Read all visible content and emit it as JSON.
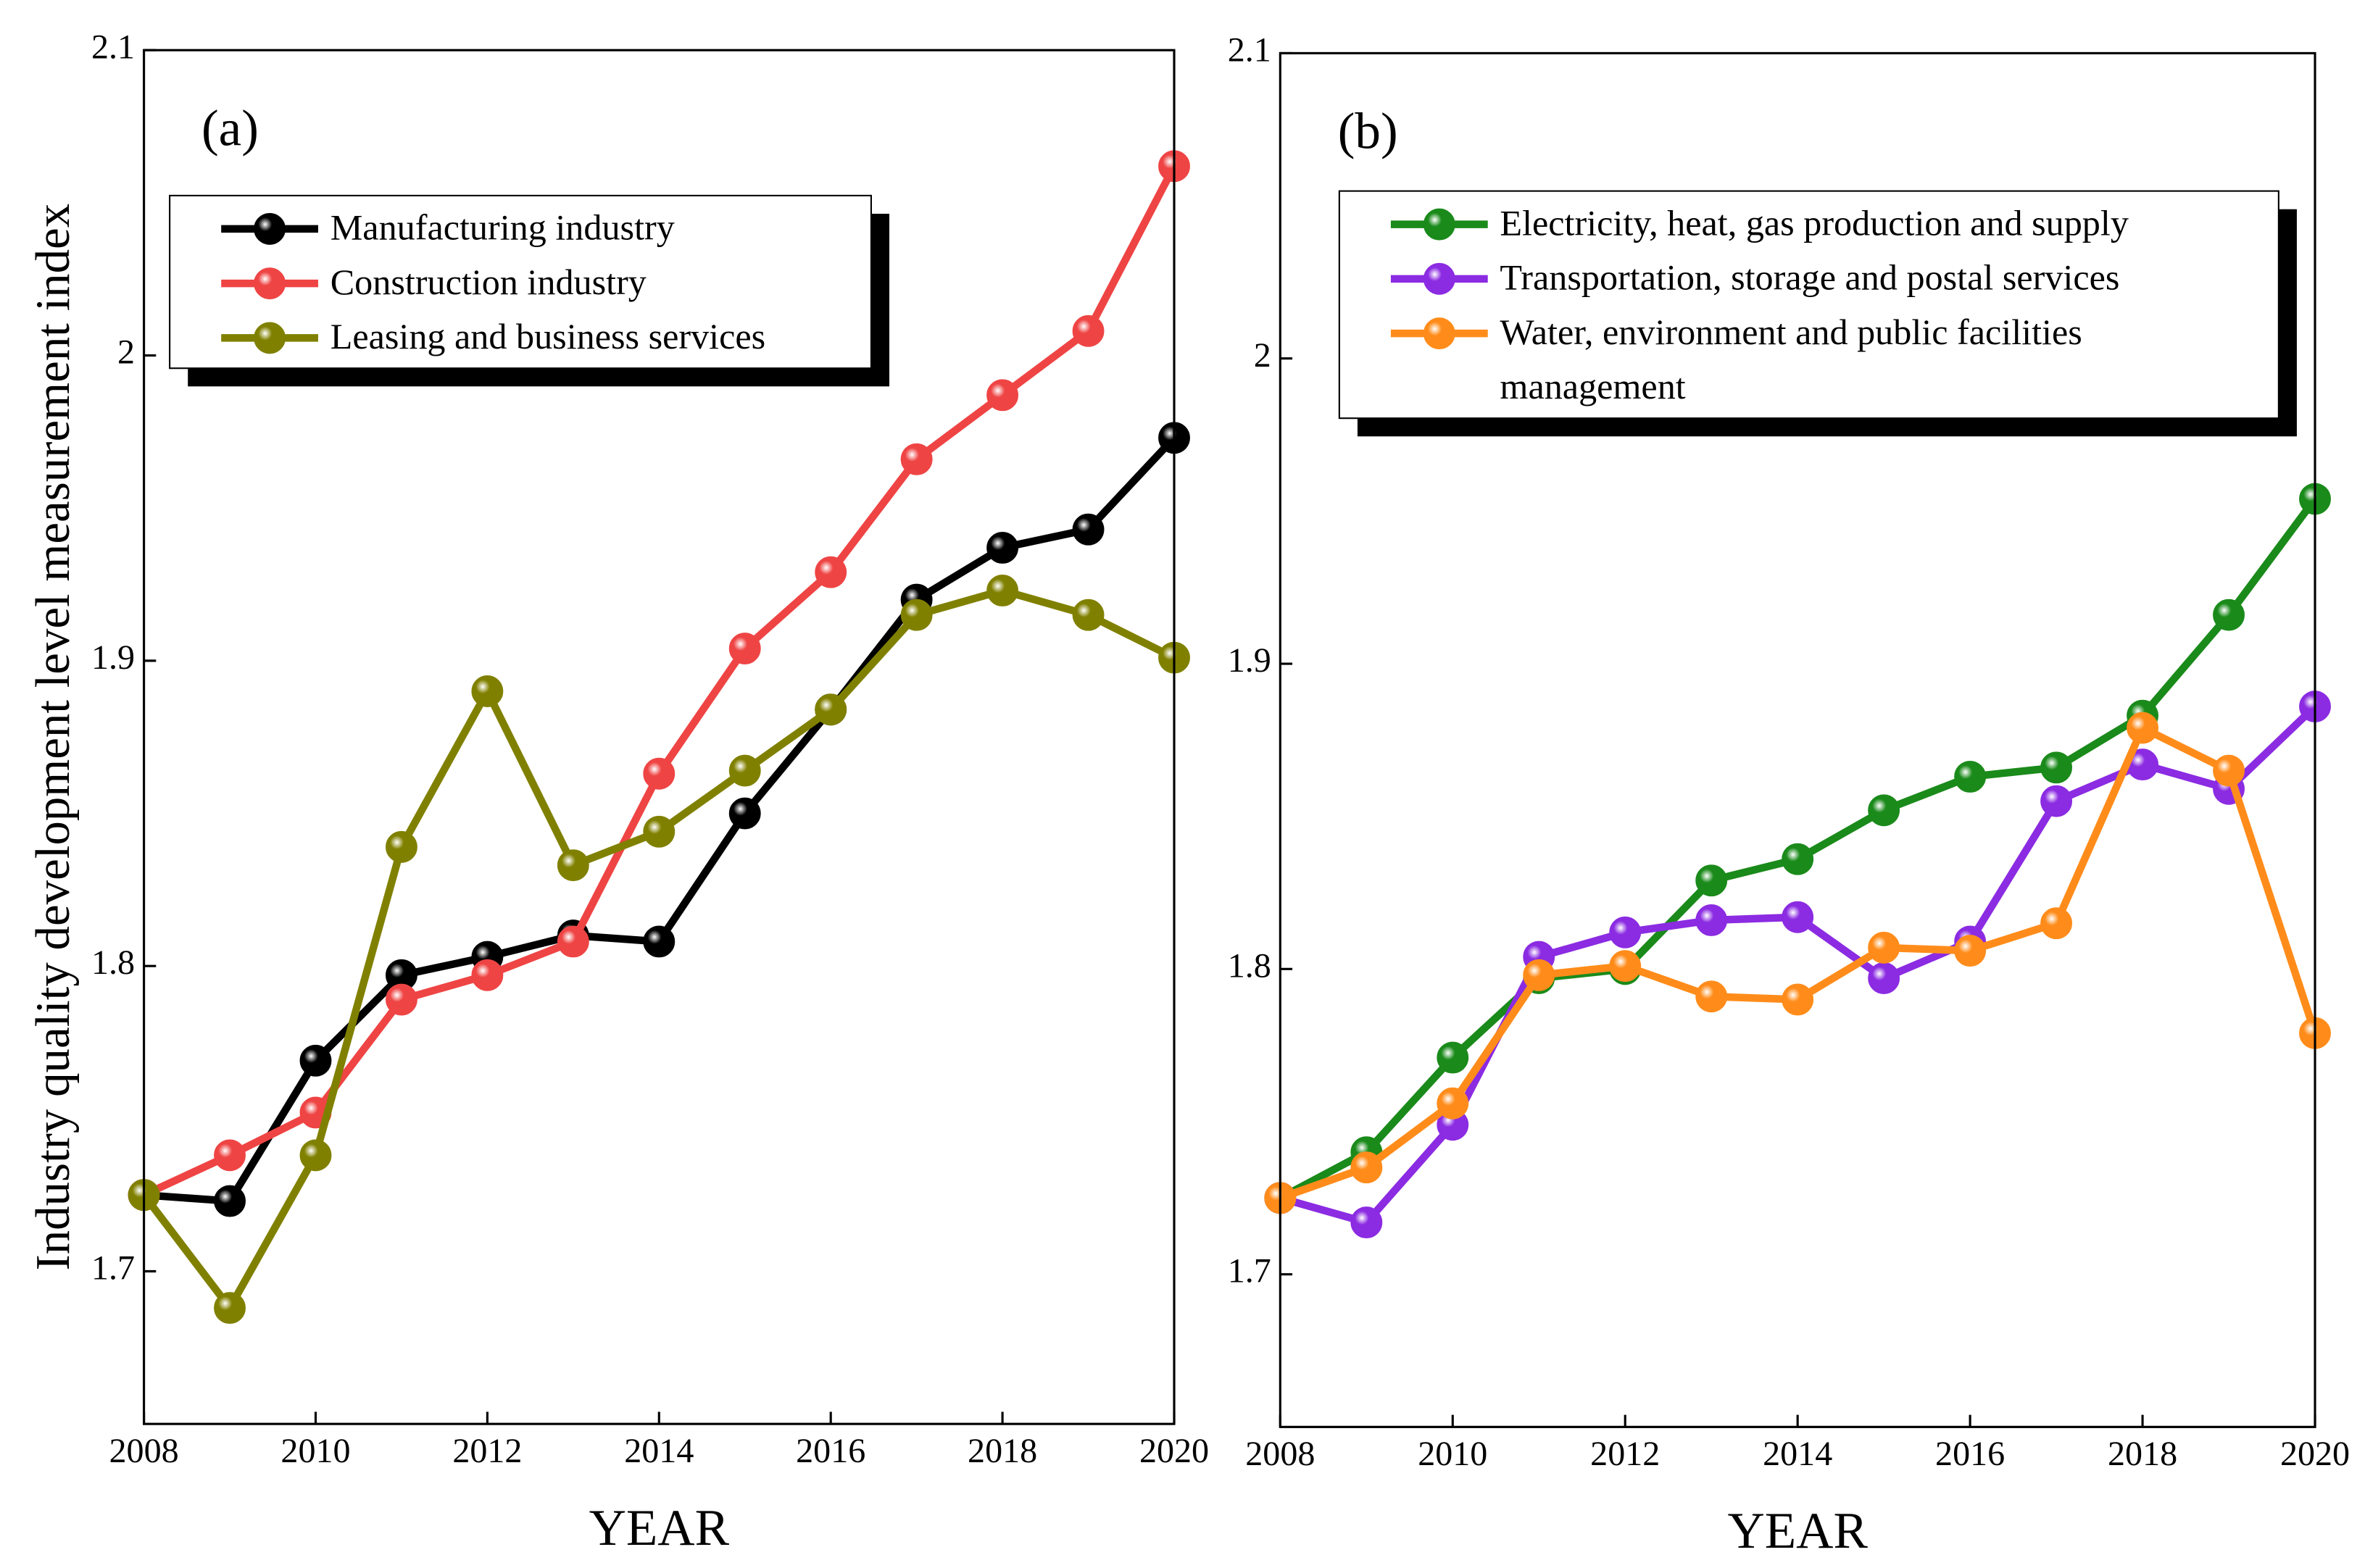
{
  "chart_data": [
    {
      "type": "line",
      "annotation": "(a)",
      "x_label": "YEAR",
      "y_label": "Industry quality development level measurement index",
      "x": [
        2008,
        2009,
        2010,
        2011,
        2012,
        2013,
        2014,
        2015,
        2016,
        2017,
        2018,
        2019,
        2020
      ],
      "xlim": [
        2008,
        2020
      ],
      "xticks": [
        2008,
        2010,
        2012,
        2014,
        2016,
        2018,
        2020
      ],
      "ylim": [
        1.65,
        2.1
      ],
      "yticks": [
        1.7,
        1.8,
        1.9,
        2,
        2.1
      ],
      "series": [
        {
          "name": "Manufacturing industry",
          "color": "#000000",
          "values": [
            1.725,
            1.723,
            1.769,
            1.797,
            1.803,
            1.81,
            1.808,
            1.85,
            1.884,
            1.92,
            1.937,
            1.943,
            1.973
          ]
        },
        {
          "name": "Construction industry",
          "color": "#ef4444",
          "values": [
            1.725,
            1.738,
            1.752,
            1.789,
            1.797,
            1.808,
            1.863,
            1.904,
            1.929,
            1.966,
            1.987,
            2.008,
            2.062
          ]
        },
        {
          "name": "Leasing and business services",
          "color": "#808000",
          "values": [
            1.725,
            1.688,
            1.738,
            1.839,
            1.89,
            1.833,
            1.844,
            1.864,
            1.884,
            1.915,
            1.923,
            1.915,
            1.901
          ]
        }
      ]
    },
    {
      "type": "line",
      "annotation": "(b)",
      "x_label": "YEAR",
      "x": [
        2008,
        2009,
        2010,
        2011,
        2012,
        2013,
        2014,
        2015,
        2016,
        2017,
        2018,
        2019,
        2020
      ],
      "xlim": [
        2008,
        2020
      ],
      "xticks": [
        2008,
        2010,
        2012,
        2014,
        2016,
        2018,
        2020
      ],
      "ylim": [
        1.65,
        2.1
      ],
      "yticks": [
        1.7,
        1.8,
        1.9,
        2,
        2.1
      ],
      "series": [
        {
          "name": "Electricity, heat, gas production and supply",
          "color": "#1a8a1a",
          "values": [
            1.725,
            1.74,
            1.771,
            1.797,
            1.8,
            1.829,
            1.836,
            1.852,
            1.863,
            1.866,
            1.883,
            1.916,
            1.954
          ]
        },
        {
          "name": "Transportation, storage and postal services",
          "color": "#8b2be2",
          "values": [
            1.725,
            1.717,
            1.749,
            1.804,
            1.812,
            1.816,
            1.817,
            1.797,
            1.809,
            1.855,
            1.867,
            1.859,
            1.886
          ]
        },
        {
          "name": "Water, environment and public facilities management",
          "color": "#ff8c1a",
          "values": [
            1.725,
            1.735,
            1.756,
            1.798,
            1.801,
            1.791,
            1.79,
            1.807,
            1.806,
            1.815,
            1.879,
            1.865,
            1.779
          ]
        }
      ]
    }
  ]
}
